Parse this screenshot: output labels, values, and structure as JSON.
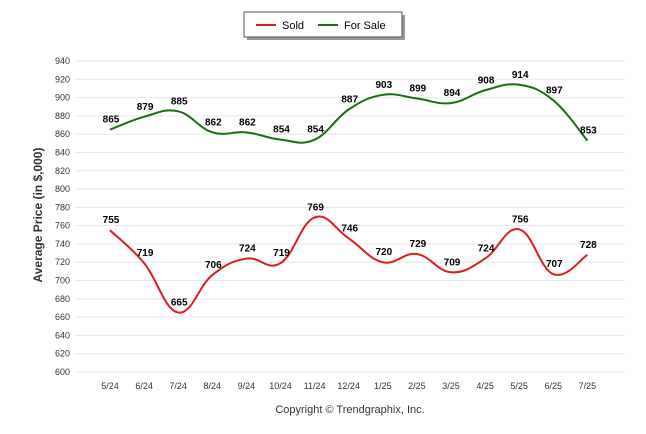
{
  "chart_data": {
    "type": "line",
    "categories": [
      "5/24",
      "6/24",
      "7/24",
      "8/24",
      "9/24",
      "10/24",
      "11/24",
      "12/24",
      "1/25",
      "2/25",
      "3/25",
      "4/25",
      "5/25",
      "6/25",
      "7/25"
    ],
    "series": [
      {
        "name": "Sold",
        "color": "#e01b1b",
        "values": [
          755,
          719,
          665,
          706,
          724,
          719,
          769,
          746,
          720,
          729,
          709,
          724,
          756,
          707,
          728
        ]
      },
      {
        "name": "For Sale",
        "color": "#1a6e12",
        "values": [
          865,
          879,
          885,
          862,
          862,
          854,
          854,
          887,
          903,
          899,
          894,
          908,
          914,
          897,
          853
        ]
      }
    ],
    "ylabel": "Average Price (in $,000)",
    "ylim": [
      600,
      940
    ],
    "ytick_step": 20,
    "yticks": [
      "600",
      "620",
      "640",
      "660",
      "680",
      "700",
      "720",
      "740",
      "760",
      "780",
      "800",
      "820",
      "840",
      "860",
      "880",
      "900",
      "920",
      "940"
    ],
    "grid": true,
    "legend_position": "top-center",
    "footer": "Copyright © Trendgraphix, Inc."
  }
}
